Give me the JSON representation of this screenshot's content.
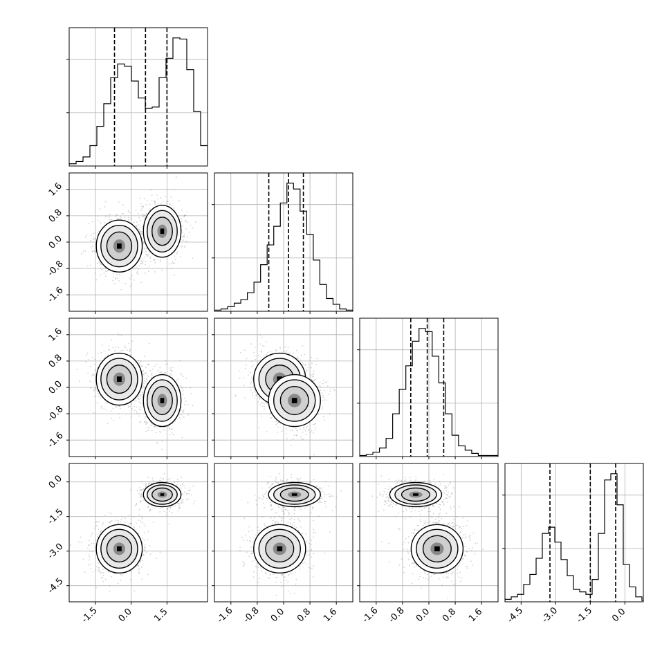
{
  "chart_data": {
    "type": "corner",
    "title": "",
    "parameters": 4,
    "colors": {
      "line": "#000000",
      "grid": "#b0b0b0",
      "scatter": "#7f7f7f",
      "fill": "#ffffff"
    },
    "grid": true,
    "tick_labels": [
      [
        "-1.5",
        "0.0",
        "1.5"
      ],
      [
        "-1.6",
        "-0.8",
        "0.0",
        "0.8",
        "1.6"
      ],
      [
        "-1.6",
        "-0.8",
        "0.0",
        "0.8",
        "1.6"
      ],
      [
        "-4.5",
        "-3.0",
        "-1.5",
        "0.0"
      ]
    ],
    "axes": [
      {
        "range": [
          -2.6,
          3.2
        ],
        "ticks": [
          -1.5,
          0.0,
          1.5
        ]
      },
      {
        "range": [
          -2.1,
          2.1
        ],
        "ticks": [
          -1.6,
          -0.8,
          0.0,
          0.8,
          1.6
        ]
      },
      {
        "range": [
          -2.1,
          2.1
        ],
        "ticks": [
          -1.6,
          -0.8,
          0.0,
          0.8,
          1.6
        ]
      },
      {
        "range": [
          -5.2,
          0.8
        ],
        "ticks": [
          -4.5,
          -3.0,
          -1.5,
          0.0
        ]
      }
    ],
    "quantiles": [
      [
        -0.7,
        0.6,
        1.5
      ],
      [
        -0.45,
        0.15,
        0.6
      ],
      [
        -0.55,
        -0.05,
        0.45
      ],
      [
        -3.25,
        -1.5,
        -0.4
      ]
    ],
    "histograms": [
      {
        "bin_start": -2.6,
        "bin_width": 0.29,
        "counts": [
          2,
          4,
          8,
          18,
          35,
          55,
          78,
          90,
          88,
          75,
          60,
          51,
          52,
          78,
          95,
          113,
          112,
          85,
          48,
          18,
          5,
          2
        ]
      },
      {
        "bin_start": -2.1,
        "bin_width": 0.2,
        "counts": [
          1,
          2,
          4,
          7,
          10,
          16,
          25,
          40,
          57,
          73,
          93,
          110,
          105,
          86,
          66,
          44,
          23,
          11,
          6,
          2,
          1
        ]
      },
      {
        "bin_start": -2.1,
        "bin_width": 0.2,
        "counts": [
          1,
          2,
          4,
          8,
          17,
          40,
          63,
          85,
          108,
          120,
          117,
          94,
          69,
          40,
          20,
          10,
          6,
          3,
          1,
          1,
          1
        ]
      },
      {
        "bin_start": -5.2,
        "bin_width": 0.27,
        "counts": [
          2,
          4,
          6,
          14,
          22,
          35,
          55,
          60,
          48,
          34,
          21,
          10,
          8,
          6,
          18,
          55,
          98,
          103,
          78,
          30,
          12,
          4,
          1
        ]
      }
    ],
    "clusters": [
      {
        "weight": 0.5,
        "mean": [
          -0.5,
          -0.12,
          0.25,
          -2.9
        ],
        "std": [
          0.55,
          0.45,
          0.45,
          0.6
        ]
      },
      {
        "weight": 0.5,
        "mean": [
          1.3,
          0.33,
          -0.4,
          -0.55
        ],
        "std": [
          0.45,
          0.45,
          0.45,
          0.3
        ]
      }
    ]
  }
}
